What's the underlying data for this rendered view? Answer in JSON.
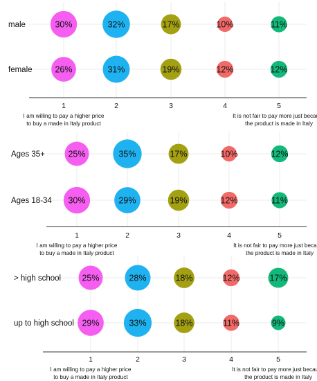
{
  "chart_data": [
    {
      "type": "bubble",
      "title": "",
      "x": [
        "1",
        "2",
        "3",
        "4",
        "5"
      ],
      "x_end_labels": {
        "left": [
          "I am willing to pay a higher price",
          "to buy a made in Italy product"
        ],
        "right": [
          "It is not fair to pay more just because",
          "the product is made in Italy"
        ]
      },
      "series": [
        {
          "name": "male",
          "values": [
            30,
            32,
            17,
            10,
            11
          ],
          "labels": [
            "30%",
            "32%",
            "17%",
            "10%",
            "11%"
          ]
        },
        {
          "name": "female",
          "values": [
            26,
            31,
            19,
            12,
            12
          ],
          "labels": [
            "26%",
            "31%",
            "19%",
            "12%",
            "12%"
          ]
        }
      ],
      "colors": [
        "#f55ef0",
        "#1eb3f0",
        "#a3a012",
        "#f26a68",
        "#12b97b"
      ],
      "grid": true
    },
    {
      "type": "bubble",
      "title": "",
      "x": [
        "1",
        "2",
        "3",
        "4",
        "5"
      ],
      "x_end_labels": {
        "left": [
          "I am willing to pay a higher price",
          "to buy a made in Italy product"
        ],
        "right": [
          "It is not fair to pay more just because",
          "the product is made in Italy"
        ]
      },
      "series": [
        {
          "name": "Ages 35+",
          "values": [
            25,
            35,
            17,
            10,
            12
          ],
          "labels": [
            "25%",
            "35%",
            "17%",
            "10%",
            "12%"
          ]
        },
        {
          "name": "Ages 18-34",
          "values": [
            30,
            29,
            19,
            12,
            11
          ],
          "labels": [
            "30%",
            "29%",
            "19%",
            "12%",
            "11%"
          ]
        }
      ],
      "colors": [
        "#f55ef0",
        "#1eb3f0",
        "#a3a012",
        "#f26a68",
        "#12b97b"
      ],
      "grid": true
    },
    {
      "type": "bubble",
      "title": "",
      "x": [
        "1",
        "2",
        "3",
        "4",
        "5"
      ],
      "x_end_labels": {
        "left": [
          "I am willing to pay a higher price",
          "to buy a made in Italy product"
        ],
        "right": [
          "It is not fair to pay more just because",
          "the product is made in Italy"
        ]
      },
      "series": [
        {
          "name": "> high school",
          "values": [
            25,
            28,
            18,
            12,
            17
          ],
          "labels": [
            "25%",
            "28%",
            "18%",
            "12%",
            "17%"
          ]
        },
        {
          "name": "up to high school",
          "values": [
            29,
            33,
            18,
            11,
            9
          ],
          "labels": [
            "29%",
            "33%",
            "18%",
            "11%",
            "9%"
          ]
        }
      ],
      "colors": [
        "#f55ef0",
        "#1eb3f0",
        "#a3a012",
        "#f26a68",
        "#12b97b"
      ],
      "grid": true
    }
  ]
}
